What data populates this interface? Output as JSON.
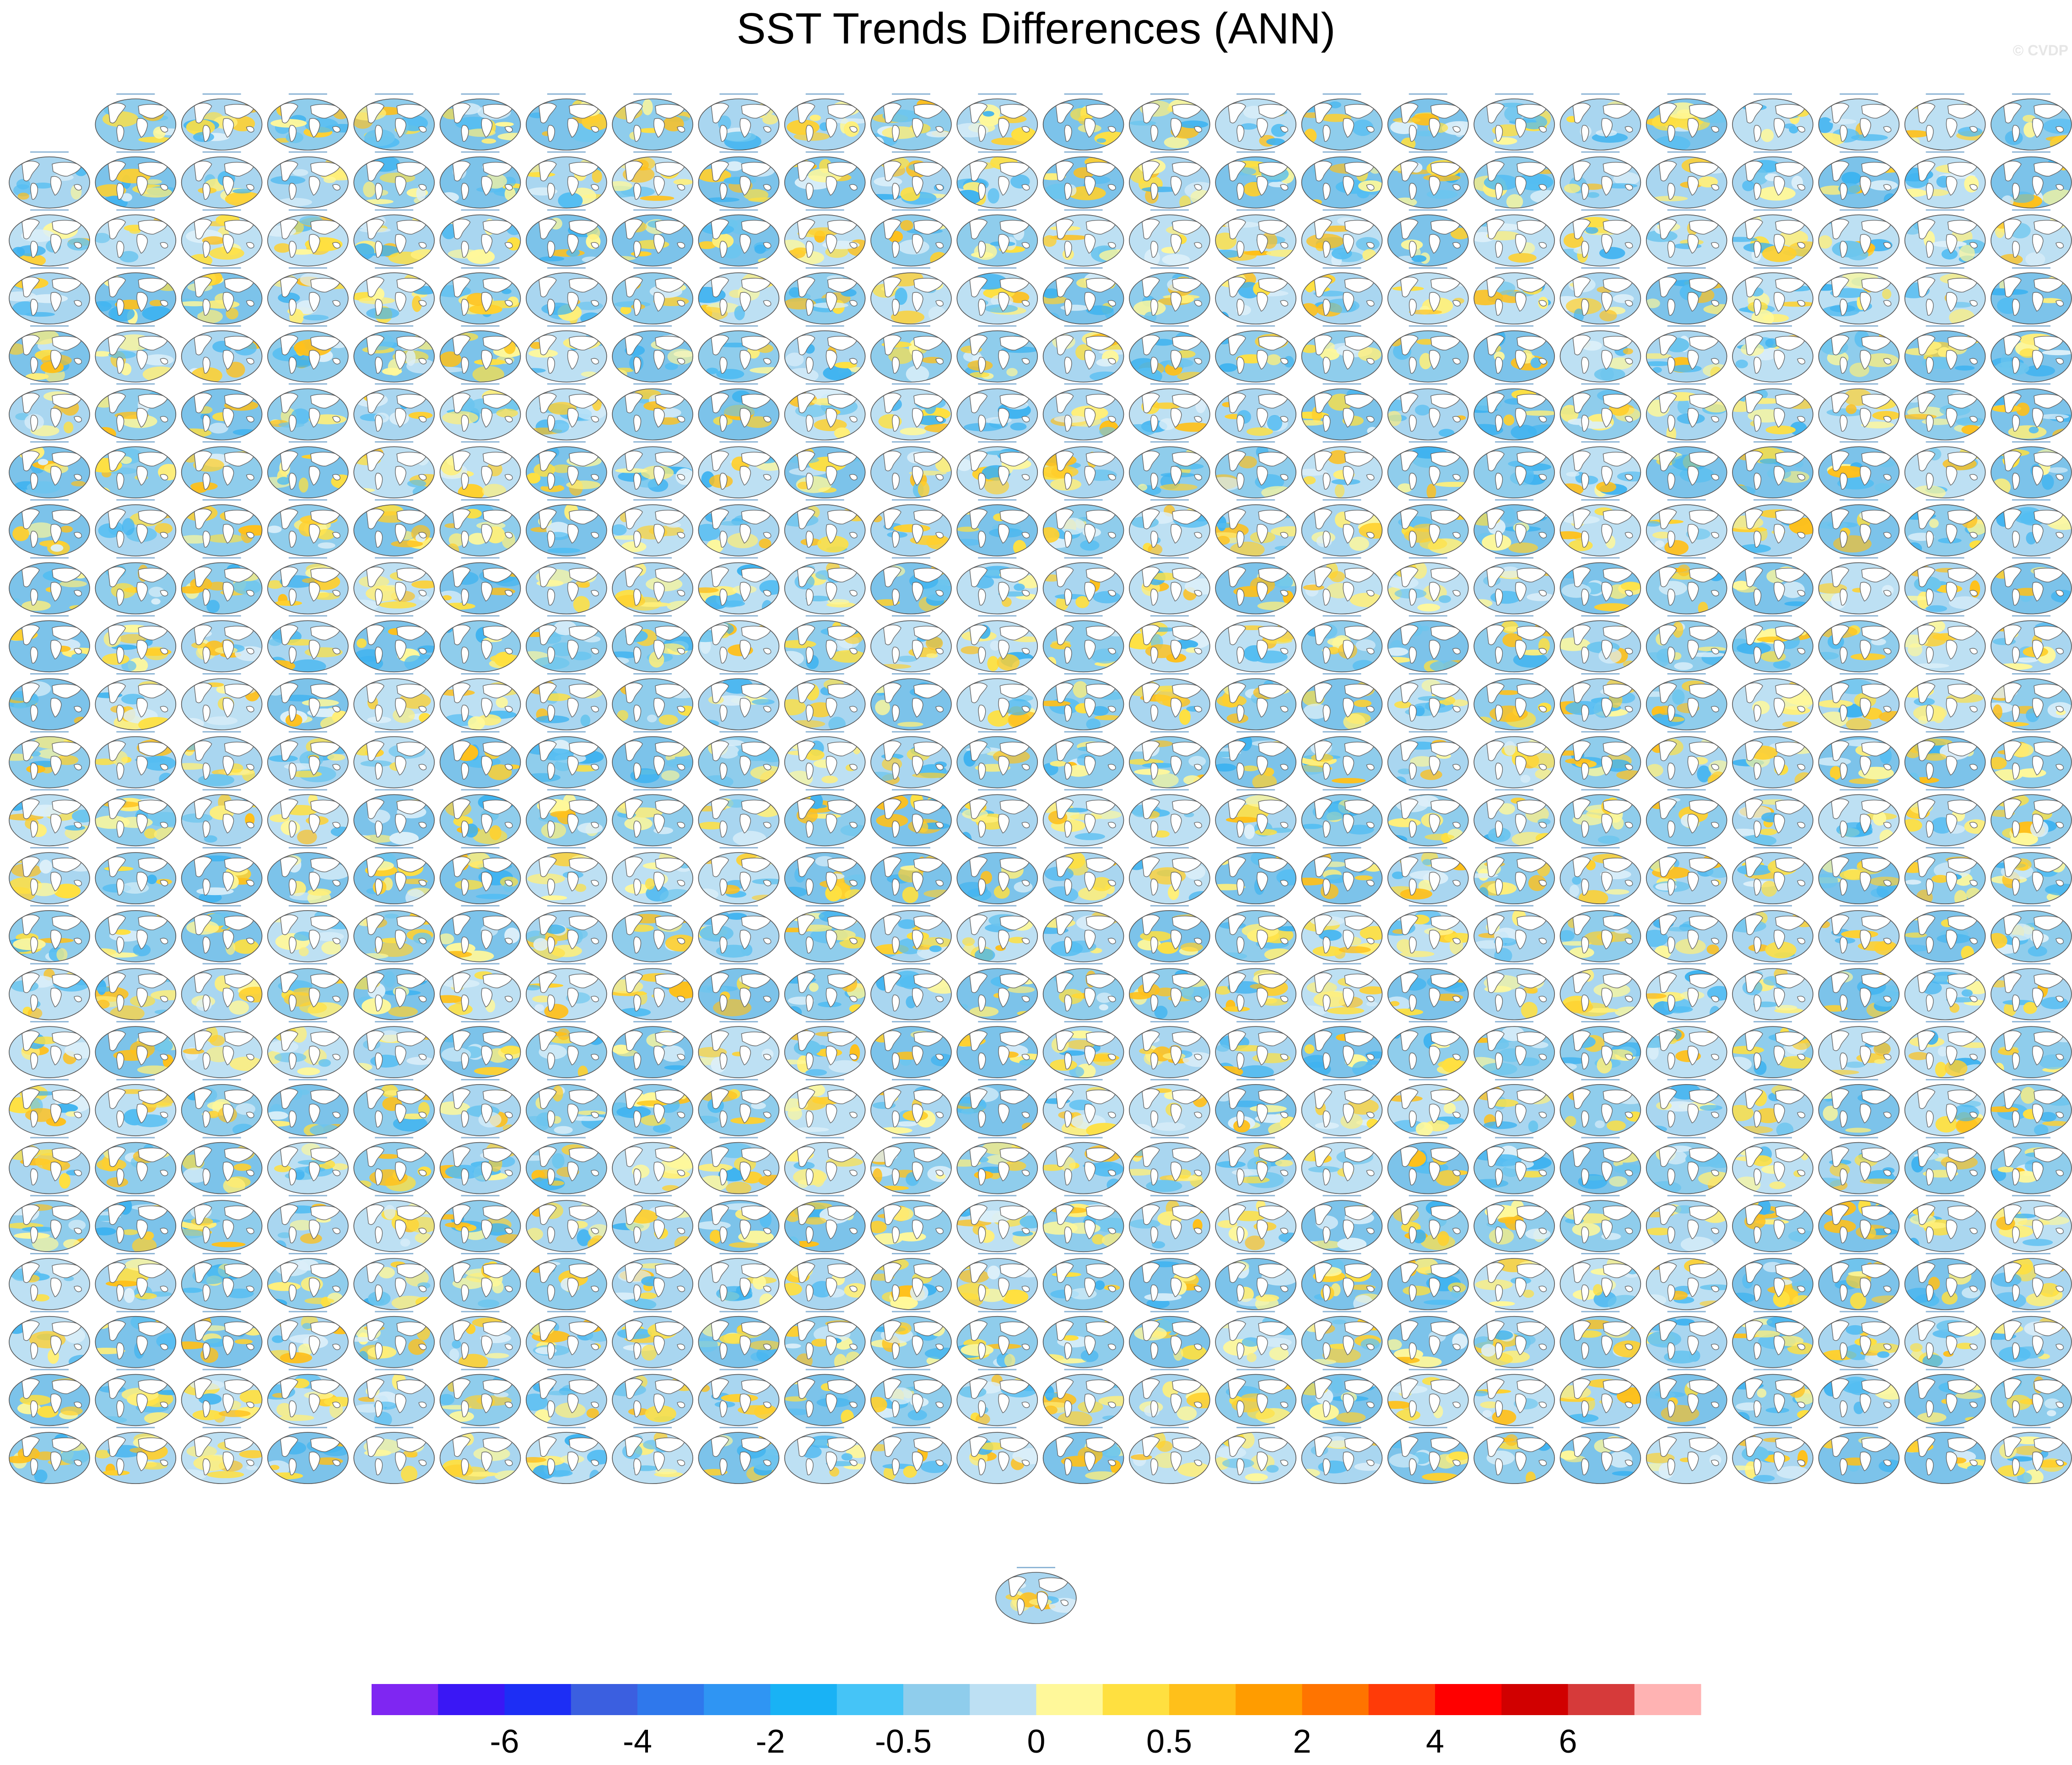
{
  "title": "SST Trends Differences (ANN)",
  "watermark": "© CVDP",
  "chart_data": {
    "type": "heatmap",
    "description_type": "panel_matrix",
    "title": "SST Trends Differences (ANN)",
    "grid": {
      "rows": 24,
      "cols": 24,
      "first_row_panels": 23,
      "extra_bottom_panels": 1
    },
    "colorbar": {
      "colors": [
        "#7f26f2",
        "#3a17f5",
        "#1d2ef5",
        "#3b5fe0",
        "#2f78ec",
        "#2f95f3",
        "#19b2f5",
        "#45c4f7",
        "#8fcdec",
        "#bde0f3",
        "#fff89a",
        "#ffe040",
        "#ffc01a",
        "#ff9c00",
        "#ff7400",
        "#ff3b08",
        "#ff0000",
        "#d10000",
        "#d63a3a",
        "#ffb3b3"
      ],
      "tick_labels": [
        "-6",
        "-4",
        "-2",
        "-0.5",
        "0",
        "0.5",
        "2",
        "4",
        "6"
      ],
      "tick_boundaries": [
        2,
        4,
        6,
        8,
        10,
        12,
        14,
        16,
        18
      ]
    }
  }
}
